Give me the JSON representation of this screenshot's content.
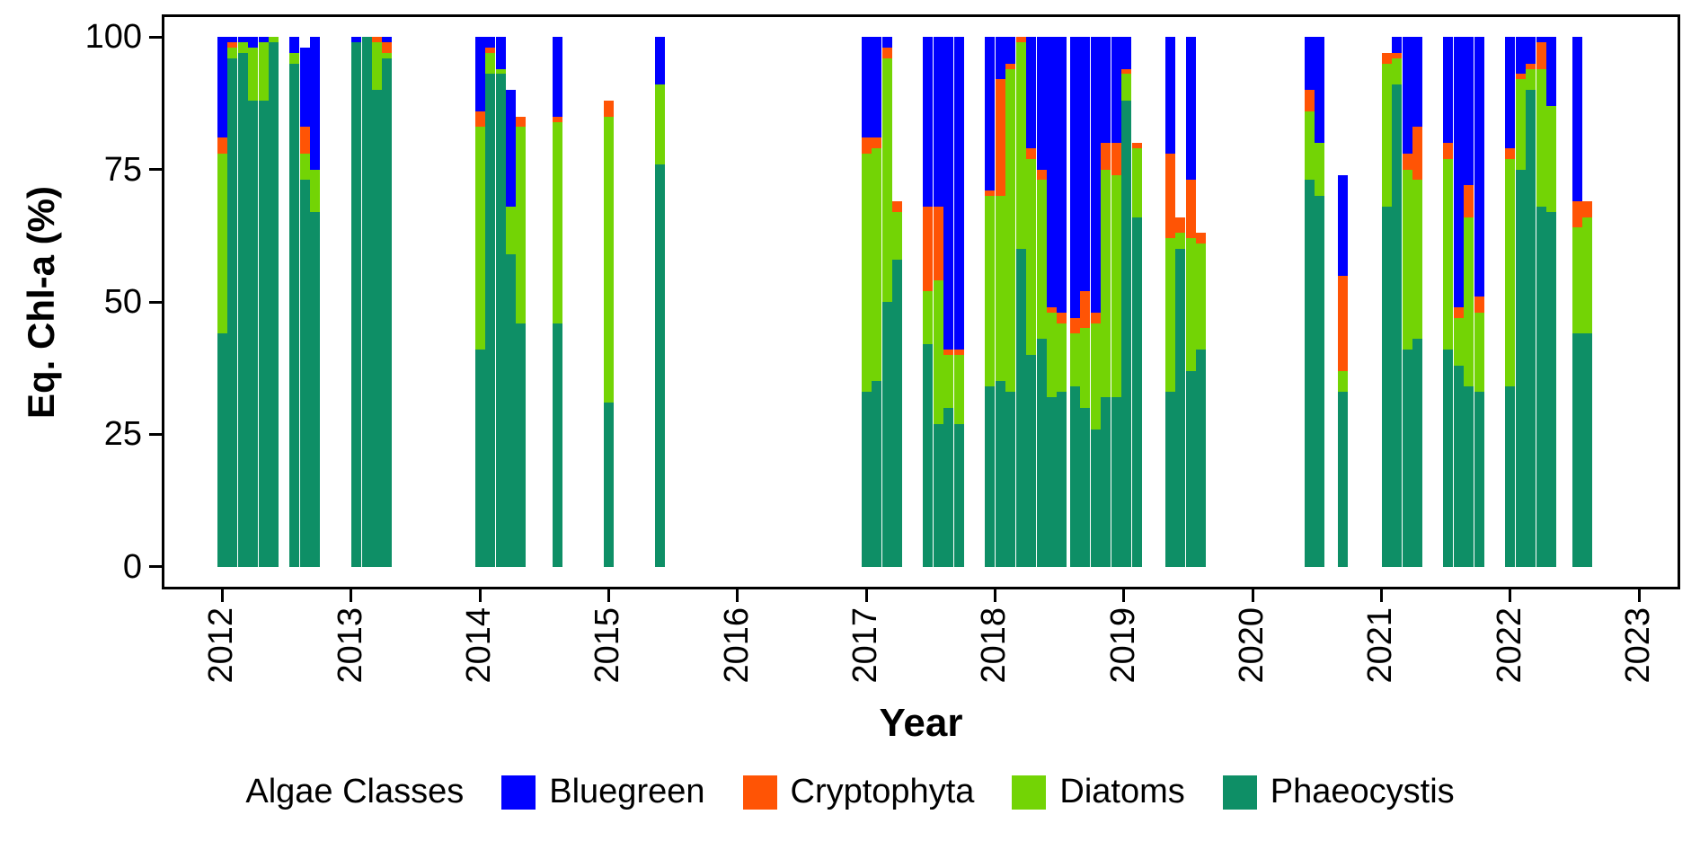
{
  "figure": {
    "background": "#FFFFFF"
  },
  "chart_data": {
    "type": "bar",
    "subtype": "stacked",
    "title": "",
    "xlabel": "Year",
    "ylabel": "Eq. Chl-a (%)",
    "legend_title": "Algae Classes",
    "legend": [
      "Bluegreen",
      "Cryptophyta",
      "Diatoms",
      "Phaeocystis"
    ],
    "series_colors": {
      "Bluegreen": "#0000FF",
      "Cryptophyta": "#FF5405",
      "Diatoms": "#73D405",
      "Phaeocystis": "#0E8F66"
    },
    "stack_order_bottom_to_top": [
      "Phaeocystis",
      "Diatoms",
      "Cryptophyta",
      "Bluegreen"
    ],
    "x_axis": {
      "min": 2011.55,
      "max": 2023.3,
      "ticks": [
        2012,
        2013,
        2014,
        2015,
        2016,
        2017,
        2018,
        2019,
        2020,
        2021,
        2022,
        2023
      ]
    },
    "y_axis": {
      "lim": [
        0,
        100
      ],
      "ticks": [
        0,
        25,
        50,
        75,
        100
      ]
    },
    "bars": [
      {
        "x": 2012.0,
        "v": [
          44,
          34,
          3,
          19
        ]
      },
      {
        "x": 2012.08,
        "v": [
          96,
          2,
          1,
          1
        ]
      },
      {
        "x": 2012.16,
        "v": [
          97,
          2,
          0,
          1
        ]
      },
      {
        "x": 2012.24,
        "v": [
          88,
          10,
          0,
          2
        ]
      },
      {
        "x": 2012.32,
        "v": [
          88,
          11,
          0,
          1
        ]
      },
      {
        "x": 2012.4,
        "v": [
          99,
          1,
          0,
          0
        ]
      },
      {
        "x": 2012.56,
        "v": [
          95,
          2,
          0,
          3
        ]
      },
      {
        "x": 2012.64,
        "v": [
          73,
          5,
          5,
          15
        ]
      },
      {
        "x": 2012.72,
        "v": [
          67,
          8,
          0,
          25
        ]
      },
      {
        "x": 2013.04,
        "v": [
          99,
          0,
          0,
          1
        ]
      },
      {
        "x": 2013.12,
        "v": [
          100,
          0,
          0,
          0
        ]
      },
      {
        "x": 2013.2,
        "v": [
          90,
          9,
          1,
          0
        ]
      },
      {
        "x": 2013.28,
        "v": [
          96,
          1,
          2,
          1
        ]
      },
      {
        "x": 2014.0,
        "v": [
          41,
          42,
          3,
          14
        ]
      },
      {
        "x": 2014.08,
        "v": [
          93,
          4,
          1,
          2
        ]
      },
      {
        "x": 2014.16,
        "v": [
          93,
          1,
          0,
          6
        ]
      },
      {
        "x": 2014.24,
        "v": [
          59,
          9,
          0,
          22
        ]
      },
      {
        "x": 2014.32,
        "v": [
          46,
          37,
          2,
          0
        ]
      },
      {
        "x": 2014.6,
        "v": [
          46,
          38,
          1,
          15
        ]
      },
      {
        "x": 2015.0,
        "v": [
          31,
          54,
          3,
          0
        ]
      },
      {
        "x": 2015.4,
        "v": [
          76,
          15,
          0,
          9
        ]
      },
      {
        "x": 2017.0,
        "v": [
          33,
          45,
          3,
          19
        ]
      },
      {
        "x": 2017.08,
        "v": [
          35,
          44,
          2,
          19
        ]
      },
      {
        "x": 2017.16,
        "v": [
          50,
          46,
          2,
          2
        ]
      },
      {
        "x": 2017.24,
        "v": [
          58,
          9,
          2,
          0
        ]
      },
      {
        "x": 2017.48,
        "v": [
          42,
          10,
          16,
          32
        ]
      },
      {
        "x": 2017.56,
        "v": [
          27,
          27,
          14,
          32
        ]
      },
      {
        "x": 2017.64,
        "v": [
          30,
          10,
          1,
          59
        ]
      },
      {
        "x": 2017.72,
        "v": [
          27,
          13,
          1,
          59
        ]
      },
      {
        "x": 2017.96,
        "v": [
          34,
          36,
          1,
          29
        ]
      },
      {
        "x": 2018.04,
        "v": [
          35,
          35,
          22,
          8
        ]
      },
      {
        "x": 2018.12,
        "v": [
          33,
          61,
          1,
          5
        ]
      },
      {
        "x": 2018.2,
        "v": [
          60,
          39,
          1,
          0
        ]
      },
      {
        "x": 2018.28,
        "v": [
          40,
          37,
          2,
          21
        ]
      },
      {
        "x": 2018.36,
        "v": [
          43,
          30,
          2,
          25
        ]
      },
      {
        "x": 2018.44,
        "v": [
          32,
          16,
          1,
          51
        ]
      },
      {
        "x": 2018.52,
        "v": [
          33,
          13,
          2,
          52
        ]
      },
      {
        "x": 2018.62,
        "v": [
          34,
          10,
          3,
          53
        ]
      },
      {
        "x": 2018.7,
        "v": [
          30,
          15,
          7,
          48
        ]
      },
      {
        "x": 2018.78,
        "v": [
          26,
          20,
          2,
          52
        ]
      },
      {
        "x": 2018.86,
        "v": [
          32,
          43,
          5,
          20
        ]
      },
      {
        "x": 2018.94,
        "v": [
          32,
          42,
          6,
          20
        ]
      },
      {
        "x": 2019.02,
        "v": [
          88,
          5,
          1,
          6
        ]
      },
      {
        "x": 2019.1,
        "v": [
          66,
          13,
          1,
          0
        ]
      },
      {
        "x": 2019.36,
        "v": [
          33,
          29,
          16,
          22
        ]
      },
      {
        "x": 2019.44,
        "v": [
          60,
          3,
          3,
          0
        ]
      },
      {
        "x": 2019.52,
        "v": [
          37,
          25,
          11,
          27
        ]
      },
      {
        "x": 2019.6,
        "v": [
          41,
          20,
          2,
          0
        ]
      },
      {
        "x": 2020.44,
        "v": [
          73,
          13,
          4,
          10
        ]
      },
      {
        "x": 2020.52,
        "v": [
          70,
          10,
          0,
          20
        ]
      },
      {
        "x": 2020.7,
        "v": [
          33,
          4,
          18,
          19
        ]
      },
      {
        "x": 2021.04,
        "v": [
          68,
          27,
          2,
          0
        ]
      },
      {
        "x": 2021.12,
        "v": [
          91,
          5,
          1,
          3
        ]
      },
      {
        "x": 2021.2,
        "v": [
          41,
          34,
          3,
          22
        ]
      },
      {
        "x": 2021.28,
        "v": [
          43,
          30,
          10,
          17
        ]
      },
      {
        "x": 2021.52,
        "v": [
          41,
          36,
          3,
          20
        ]
      },
      {
        "x": 2021.6,
        "v": [
          38,
          9,
          2,
          51
        ]
      },
      {
        "x": 2021.68,
        "v": [
          34,
          32,
          6,
          28
        ]
      },
      {
        "x": 2021.76,
        "v": [
          33,
          15,
          3,
          49
        ]
      },
      {
        "x": 2022.0,
        "v": [
          34,
          43,
          2,
          21
        ]
      },
      {
        "x": 2022.08,
        "v": [
          75,
          17,
          1,
          7
        ]
      },
      {
        "x": 2022.16,
        "v": [
          90,
          4,
          1,
          5
        ]
      },
      {
        "x": 2022.24,
        "v": [
          68,
          26,
          5,
          1
        ]
      },
      {
        "x": 2022.32,
        "v": [
          67,
          20,
          0,
          13
        ]
      },
      {
        "x": 2022.52,
        "v": [
          44,
          20,
          5,
          31
        ]
      },
      {
        "x": 2022.6,
        "v": [
          44,
          22,
          3,
          0
        ]
      }
    ]
  }
}
